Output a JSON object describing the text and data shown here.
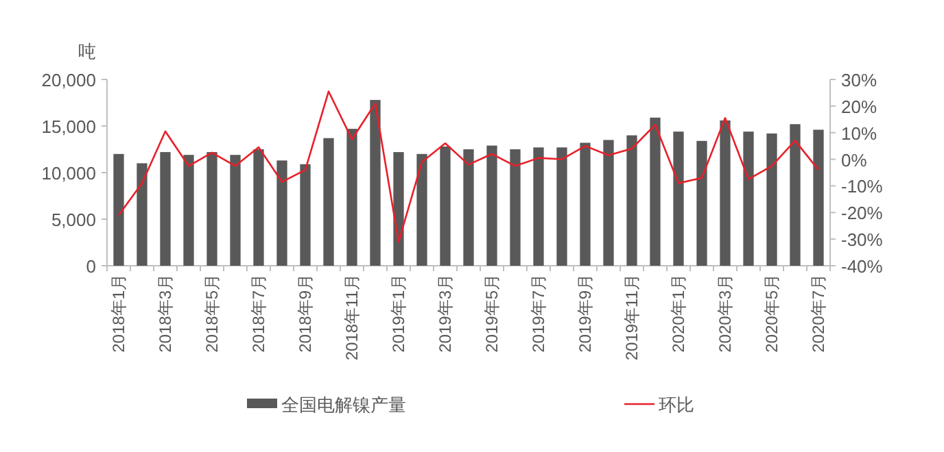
{
  "chart_data": {
    "type": "bar",
    "ylabel": "吨",
    "categories": [
      "2018年1月",
      null,
      "2018年3月",
      null,
      "2018年5月",
      null,
      "2018年7月",
      null,
      "2018年9月",
      null,
      "2018年11月",
      null,
      "2019年1月",
      null,
      "2019年3月",
      null,
      "2019年5月",
      null,
      "2019年7月",
      null,
      "2019年9月",
      null,
      "2019年11月",
      null,
      "2020年1月",
      null,
      "2020年3月",
      null,
      "2020年5月",
      null,
      "2020年7月"
    ],
    "series": [
      {
        "name": "全国电解镍产量",
        "color": "#595959",
        "values": [
          12000,
          11000,
          12200,
          11900,
          12200,
          11900,
          12500,
          11300,
          10900,
          13700,
          14700,
          17800,
          12200,
          12000,
          12800,
          12500,
          12900,
          12500,
          12700,
          12700,
          13200,
          13500,
          14000,
          15900,
          14400,
          13400,
          15600,
          14400,
          14200,
          15200,
          14600
        ]
      },
      {
        "name": "环比",
        "type": "line",
        "axis": "y2",
        "color": "#e8202a",
        "values": [
          -21,
          -9,
          10.5,
          -2.5,
          2.5,
          -2.5,
          4.5,
          -8.5,
          -4,
          25.5,
          7.5,
          21,
          -31,
          -1,
          6,
          -2,
          2,
          -2.5,
          0.5,
          0,
          5,
          1.5,
          4,
          13,
          -9,
          -7,
          15.5,
          -7.5,
          -2.5,
          7,
          -4
        ]
      }
    ],
    "ylim": [
      0,
      20000
    ],
    "yticks": [
      0,
      {
        "value": 5000,
        "label": "5,000"
      },
      {
        "value": 10000,
        "label": "10,000"
      },
      {
        "value": 15000,
        "label": "15,000"
      },
      {
        "value": 20000,
        "label": "20,000"
      }
    ],
    "y2lim": [
      -40,
      30
    ],
    "y2ticks": [
      {
        "value": -40,
        "label": "-40%"
      },
      {
        "value": -30,
        "label": "-30%"
      },
      {
        "value": -20,
        "label": "-20%"
      },
      {
        "value": -10,
        "label": "-10%"
      },
      {
        "value": 0,
        "label": "0%"
      },
      {
        "value": 10,
        "label": "10%"
      },
      {
        "value": 20,
        "label": "20%"
      },
      {
        "value": 30,
        "label": "30%"
      }
    ],
    "legend": "bottom"
  }
}
